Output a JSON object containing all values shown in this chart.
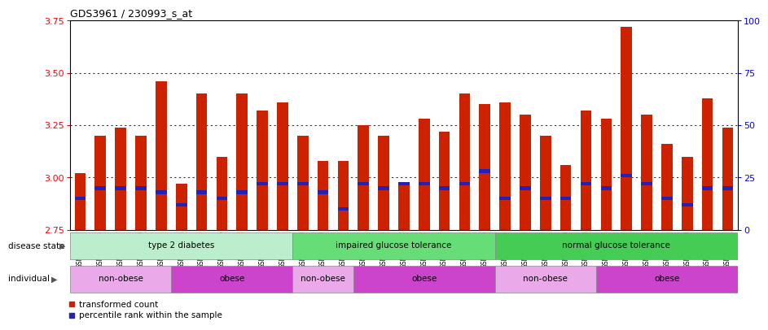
{
  "title": "GDS3961 / 230993_s_at",
  "samples": [
    "GSM691133",
    "GSM691136",
    "GSM691137",
    "GSM691139",
    "GSM691141",
    "GSM691148",
    "GSM691125",
    "GSM691129",
    "GSM691138",
    "GSM691142",
    "GSM691144",
    "GSM691140",
    "GSM691149",
    "GSM691151",
    "GSM691152",
    "GSM691126",
    "GSM691127",
    "GSM691128",
    "GSM691132",
    "GSM691145",
    "GSM691146",
    "GSM691135",
    "GSM691143",
    "GSM691147",
    "GSM691150",
    "GSM691153",
    "GSM691154",
    "GSM691122",
    "GSM691123",
    "GSM691124",
    "GSM691130",
    "GSM691131",
    "GSM691134"
  ],
  "transformed_count": [
    3.02,
    3.2,
    3.24,
    3.2,
    3.46,
    2.97,
    3.4,
    3.1,
    3.4,
    3.32,
    3.36,
    3.2,
    3.08,
    3.08,
    3.25,
    3.2,
    2.97,
    3.28,
    3.22,
    3.4,
    3.35,
    3.36,
    3.3,
    3.2,
    3.06,
    3.32,
    3.28,
    3.72,
    3.3,
    3.16,
    3.1,
    3.38,
    3.24
  ],
  "percentile_rank": [
    15,
    20,
    20,
    20,
    18,
    12,
    18,
    15,
    18,
    22,
    22,
    22,
    18,
    10,
    22,
    20,
    22,
    22,
    20,
    22,
    28,
    15,
    20,
    15,
    15,
    22,
    20,
    26,
    22,
    15,
    12,
    20,
    20
  ],
  "ymin": 2.75,
  "ymax": 3.75,
  "yticks_left": [
    2.75,
    3.0,
    3.25,
    3.5,
    3.75
  ],
  "yticks_right": [
    0,
    25,
    50,
    75,
    100
  ],
  "bar_color": "#CC2200",
  "blue_color": "#2222BB",
  "bar_width": 0.55,
  "disease_state_groups": [
    {
      "label": "type 2 diabetes",
      "start": 0,
      "end": 11,
      "color": "#BBEECC"
    },
    {
      "label": "impaired glucose tolerance",
      "start": 11,
      "end": 21,
      "color": "#66DD77"
    },
    {
      "label": "normal glucose tolerance",
      "start": 21,
      "end": 33,
      "color": "#44CC55"
    }
  ],
  "individual_groups": [
    {
      "label": "non-obese",
      "start": 0,
      "end": 5,
      "color": "#EAAAEA"
    },
    {
      "label": "obese",
      "start": 5,
      "end": 11,
      "color": "#CC44CC"
    },
    {
      "label": "non-obese",
      "start": 11,
      "end": 14,
      "color": "#EAAAEA"
    },
    {
      "label": "obese",
      "start": 14,
      "end": 21,
      "color": "#CC44CC"
    },
    {
      "label": "non-obese",
      "start": 21,
      "end": 26,
      "color": "#EAAAEA"
    },
    {
      "label": "obese",
      "start": 26,
      "end": 33,
      "color": "#CC44CC"
    }
  ],
  "grid_ticks": [
    3.0,
    3.25,
    3.5
  ],
  "grid_color": "black",
  "grid_alpha": 0.8,
  "fig_bg": "#FFFFFF",
  "plot_bg": "#FFFFFF"
}
